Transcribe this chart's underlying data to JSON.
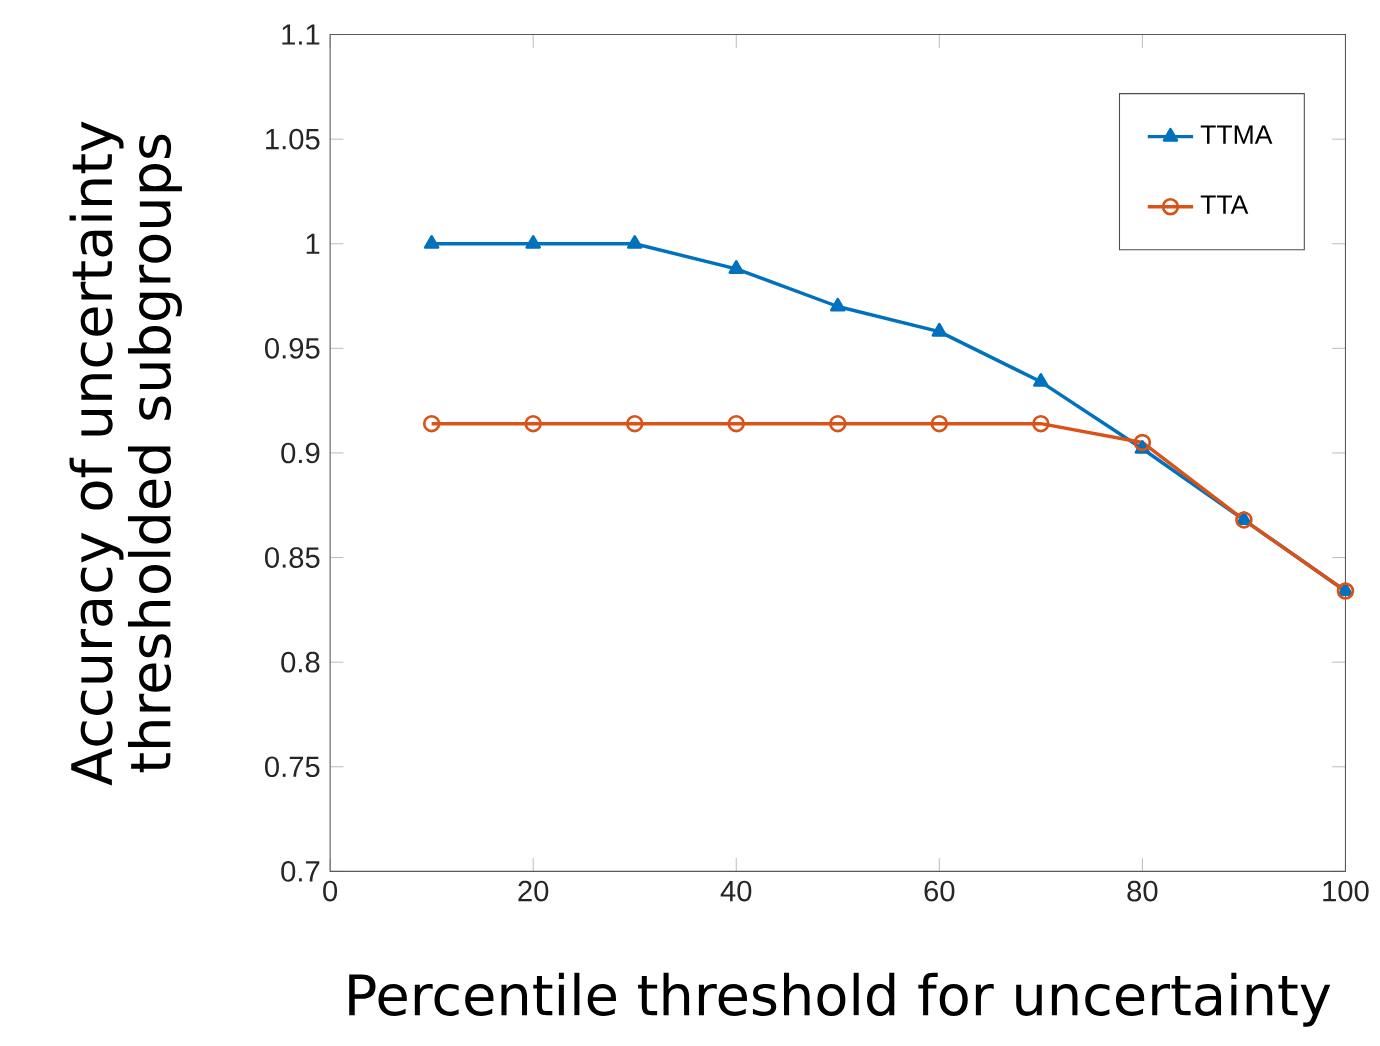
{
  "chart_data": {
    "type": "line",
    "xlabel": "Percentile threshold for uncertainty",
    "ylabel": "Accuracy of uncertainty\nthresholded subgroups",
    "x": [
      10,
      20,
      30,
      40,
      50,
      60,
      70,
      80,
      90,
      100
    ],
    "series": [
      {
        "name": "TTMA",
        "color": "#0072bd",
        "marker": "triangle",
        "values": [
          1,
          1,
          1,
          0.988,
          0.97,
          0.958,
          0.934,
          0.902,
          0.868,
          0.834
        ]
      },
      {
        "name": "TTA",
        "color": "#d95319",
        "marker": "circle",
        "values": [
          0.914,
          0.914,
          0.914,
          0.914,
          0.914,
          0.914,
          0.914,
          0.905,
          0.868,
          0.834
        ]
      }
    ],
    "xlim": [
      0,
      100
    ],
    "xticks": [
      0,
      20,
      40,
      60,
      80,
      100
    ],
    "ylim": [
      0.7,
      1.1
    ],
    "yticks": [
      0.7,
      0.75,
      0.8,
      0.85,
      0.9,
      0.95,
      1,
      1.05,
      1.1
    ],
    "grid": false,
    "legend": "top right",
    "line_style": "solid"
  }
}
